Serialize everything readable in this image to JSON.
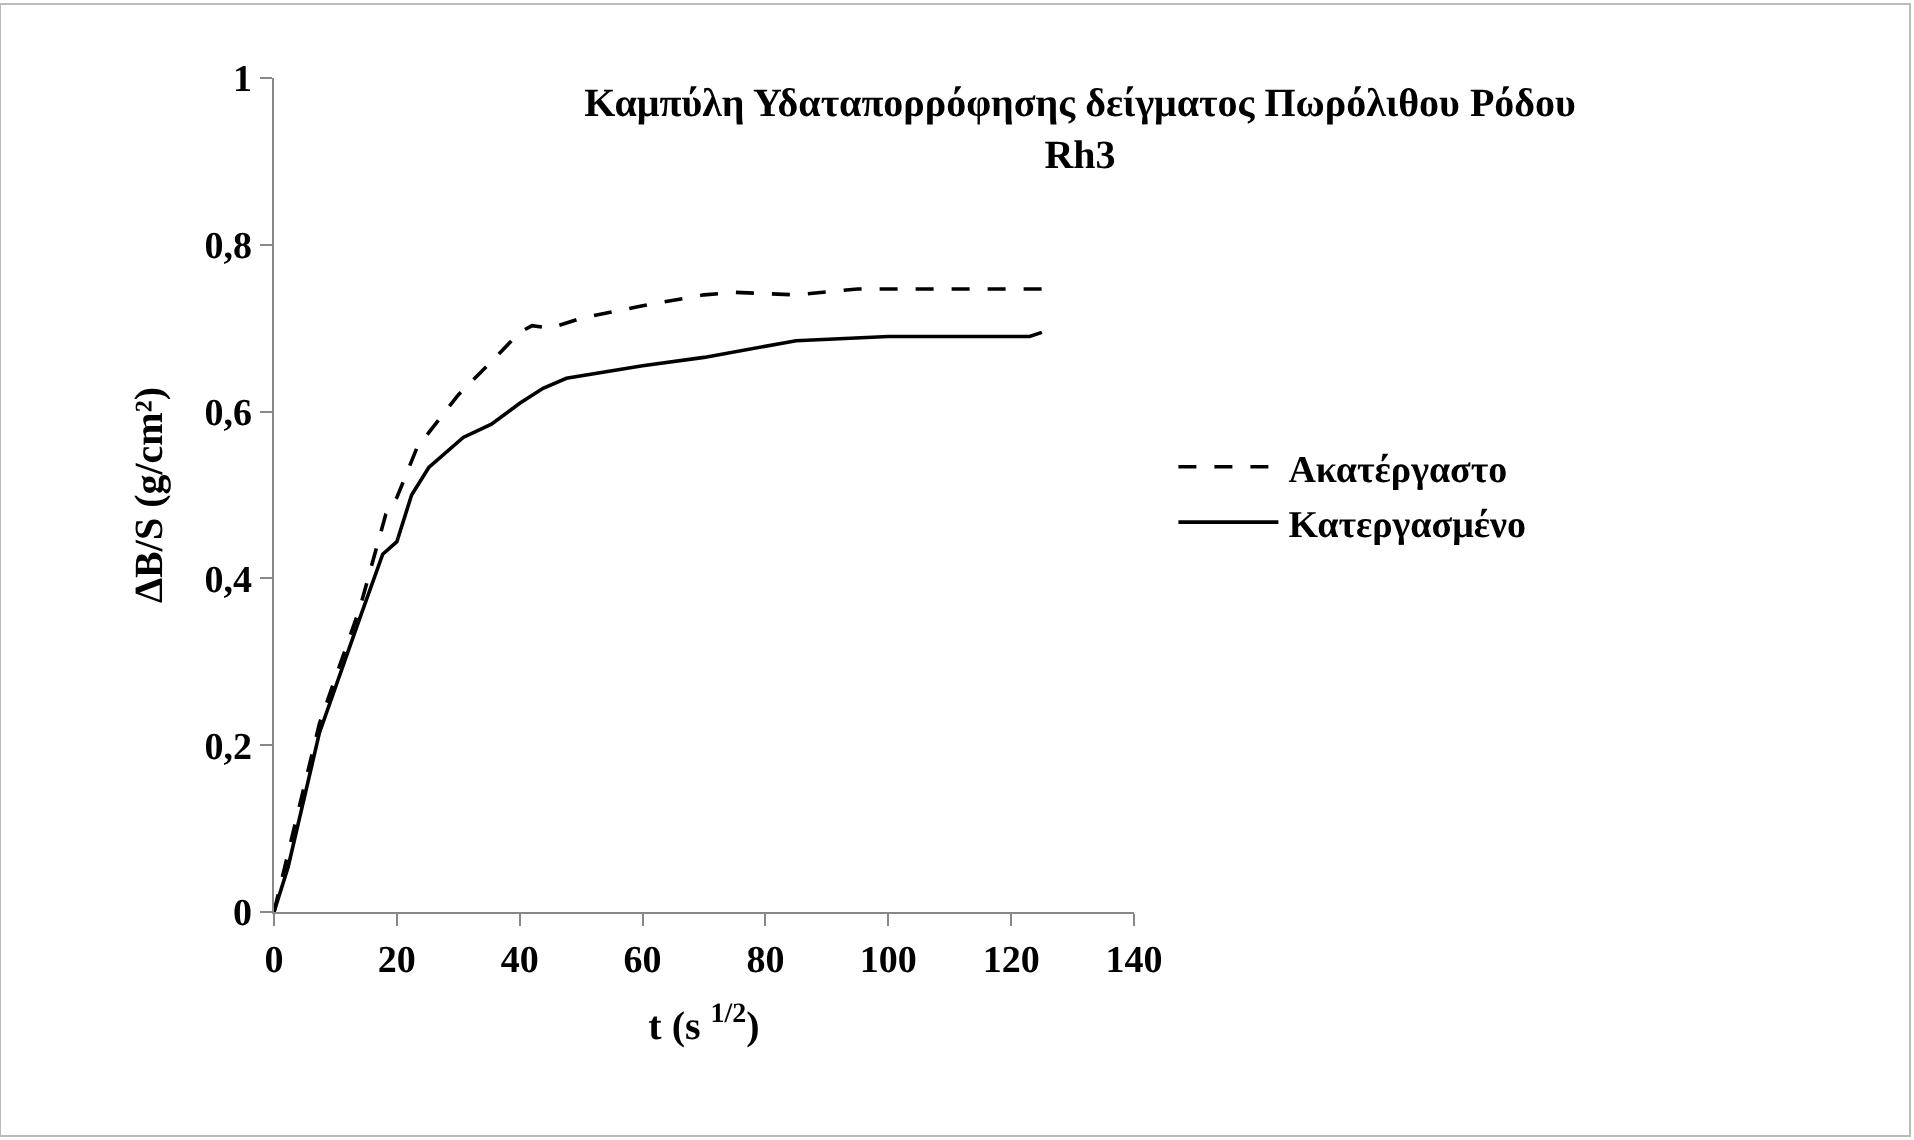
{
  "chart_data": {
    "type": "line",
    "title": "Καμπύλη Υδαταπορρόφησης δείγματος Πωρόλιθου Ρόδου\nRh3",
    "xlabel": "t (s $^{1/2}$)",
    "ylabel": "ΔB/S (g/cm²)",
    "xlim": [
      0,
      140
    ],
    "xticks": [
      0,
      20,
      40,
      60,
      80,
      100,
      120,
      140
    ],
    "ylim": [
      0,
      1
    ],
    "yticks": [
      0,
      {
        "value": 0.2,
        "label": "0,2"
      },
      {
        "value": 0.4,
        "label": "0,4"
      },
      {
        "value": 0.6,
        "label": "0,6"
      },
      {
        "value": 0.8,
        "label": "0,8"
      },
      1
    ],
    "legend": "right",
    "marker": "none",
    "series": [
      {
        "name": "Ακατέργαστο",
        "color": "#000000",
        "line_style": "dashed",
        "x": [
          0,
          2.8,
          7.4,
          14,
          18.2,
          20,
          23.3,
          30,
          35.4,
          40,
          42,
          45,
          50,
          60,
          70,
          75,
          85,
          95,
          110,
          125
        ],
        "values": [
          0,
          0.086,
          0.226,
          0.365,
          0.477,
          0.497,
          0.557,
          0.62,
          0.66,
          0.695,
          0.703,
          0.7,
          0.712,
          0.727,
          0.74,
          0.743,
          0.74,
          0.747,
          0.747,
          0.747
        ]
      },
      {
        "name": "Κατεργασμένο",
        "color": "#000000",
        "line_style": "solid",
        "x": [
          0,
          2.3,
          7.4,
          14,
          17.7,
          20,
          22.4,
          25.2,
          30.8,
          35.4,
          40,
          43.8,
          47.6,
          60,
          70,
          85,
          100,
          123,
          125
        ],
        "values": [
          0,
          0.054,
          0.215,
          0.353,
          0.429,
          0.444,
          0.5,
          0.533,
          0.569,
          0.585,
          0.61,
          0.628,
          0.64,
          0.655,
          0.665,
          0.685,
          0.69,
          0.69,
          0.695
        ]
      }
    ]
  }
}
